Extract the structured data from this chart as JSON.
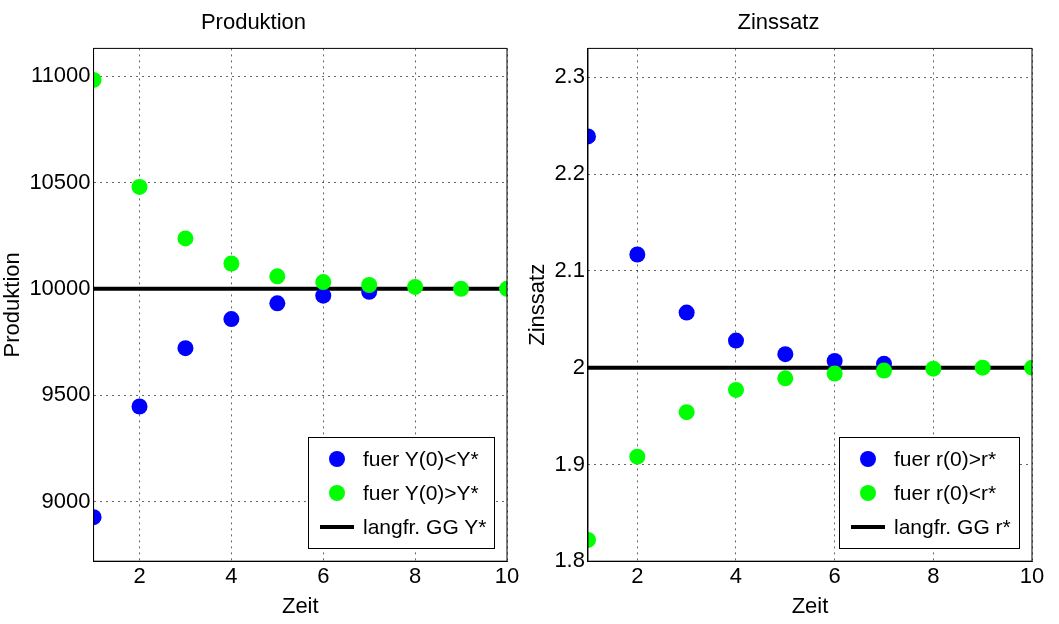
{
  "chart_data": [
    {
      "type": "scatter",
      "title": "Produktion",
      "xlabel": "Zeit",
      "ylabel": "Produktion",
      "x": [
        1,
        2,
        3,
        4,
        5,
        6,
        7,
        8,
        9,
        10
      ],
      "series": [
        {
          "name": "fuer Y(0)<Y*",
          "color": "#0000ff",
          "values": [
            8927,
            9447,
            9721,
            9858,
            9932,
            9968,
            9986,
            null,
            null,
            null
          ]
        },
        {
          "name": "fuer Y(0)>Y*",
          "color": "#00ff00",
          "values": [
            10982,
            10479,
            10237,
            10119,
            10059,
            10032,
            10018,
            10009,
            10000,
            10000
          ]
        }
      ],
      "ref_lines": [
        {
          "axis": "y",
          "value": 10000,
          "label": "langfr. GG Y*",
          "color": "#000000",
          "line_style": "solid"
        }
      ],
      "xlim": [
        1,
        10
      ],
      "xticks": [
        2,
        4,
        6,
        8,
        10
      ],
      "ylim": [
        8720,
        11130
      ],
      "yticks": [
        9000,
        9500,
        10000,
        10500,
        11000
      ],
      "grid": true,
      "legend": "bottom right",
      "marker": "circle"
    },
    {
      "type": "scatter",
      "title": "Zinssatz",
      "xlabel": "Zeit",
      "ylabel": "Zinssatz",
      "x": [
        1,
        2,
        3,
        4,
        5,
        6,
        7,
        8,
        9,
        10
      ],
      "series": [
        {
          "name": "fuer r(0)>r*",
          "color": "#0000ff",
          "values": [
            2.239,
            2.117,
            2.057,
            2.028,
            2.014,
            2.007,
            2.004,
            null,
            null,
            null
          ]
        },
        {
          "name": "fuer r(0)<r*",
          "color": "#00ff00",
          "values": [
            1.822,
            1.908,
            1.954,
            1.977,
            1.989,
            1.994,
            1.997,
            1.999,
            2.0,
            2.0
          ]
        }
      ],
      "ref_lines": [
        {
          "axis": "y",
          "value": 2,
          "label": "langfr. GG r*",
          "color": "#000000",
          "line_style": "solid"
        }
      ],
      "xlim": [
        1,
        10
      ],
      "xticks": [
        2,
        4,
        6,
        8,
        10
      ],
      "ylim": [
        1.8,
        2.33
      ],
      "yticks": [
        1.8,
        1.9,
        2,
        2.1,
        2.2,
        2.3
      ],
      "grid": true,
      "legend": "bottom right",
      "marker": "circle"
    }
  ]
}
